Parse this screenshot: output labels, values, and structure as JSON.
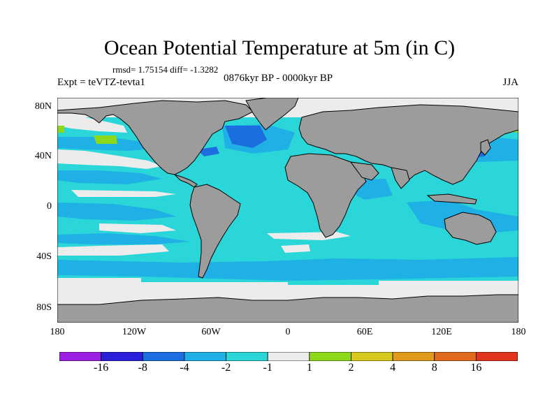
{
  "title": "Ocean Potential Temperature at 5m (in C)",
  "stats": "rmsd= 1.75154 diff= -1.3282",
  "experiment": "Expt = teVTZ-tevta1",
  "period": "0876kyr BP - 0000kyr BP",
  "season": "JJA",
  "lat_labels": [
    "80N",
    "40N",
    "0",
    "40S",
    "80S"
  ],
  "lon_labels": [
    "180",
    "120W",
    "60W",
    "0",
    "60E",
    "120E",
    "180"
  ],
  "colorbar": {
    "colors": [
      "#9b1fe0",
      "#2a1fd8",
      "#1c6de0",
      "#1fb0e6",
      "#2ad6d8",
      "#ececec",
      "#8ed81c",
      "#d6c81c",
      "#e09a1c",
      "#e06a1c",
      "#e0351c"
    ],
    "labels": [
      "-16",
      "-8",
      "-4",
      "-2",
      "-1",
      "1",
      "2",
      "4",
      "8",
      "16"
    ]
  },
  "map_colors": {
    "land": "#9c9c9c",
    "ocean_main": "#2ad6d8",
    "neg_medium": "#1fb0e6",
    "neg_strong": "#1c6de0",
    "neutral": "#ececec",
    "pos_small": "#8ed81c"
  }
}
